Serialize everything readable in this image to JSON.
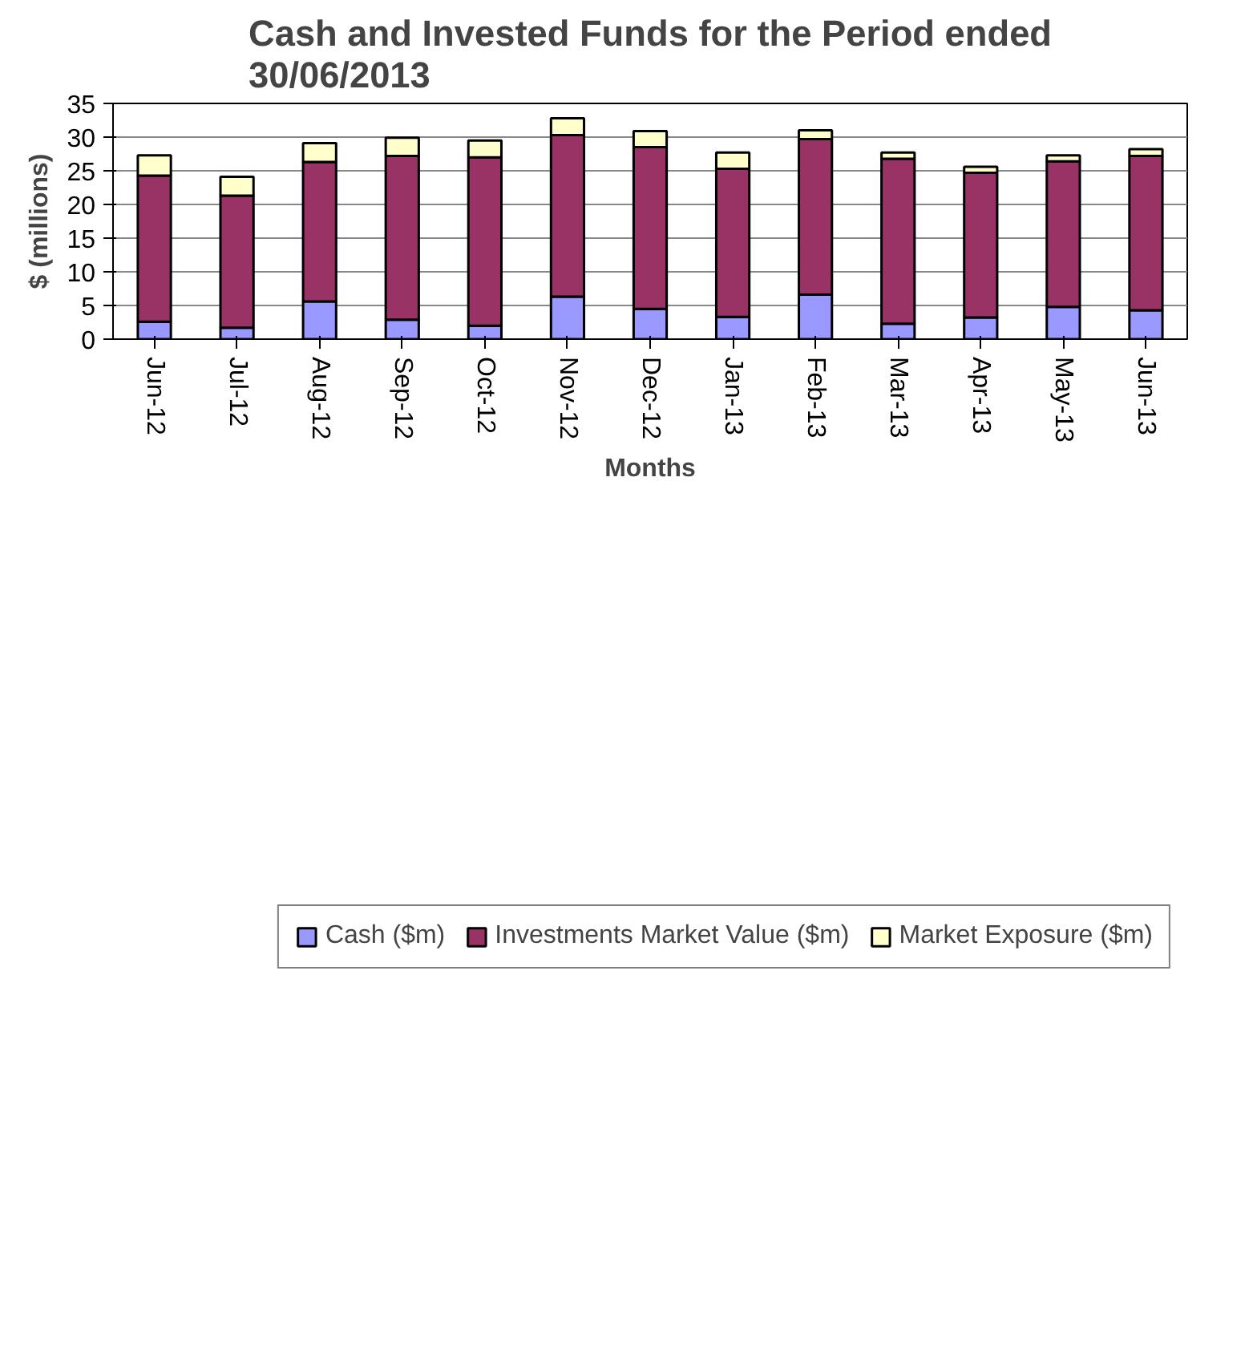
{
  "chart_data": {
    "type": "bar",
    "stacked": true,
    "title": "Cash and Invested Funds for the Period ended 30/06/2013",
    "xlabel": "Months",
    "ylabel": "$ (millions)",
    "categories": [
      "Jun-12",
      "Jul-12",
      "Aug-12",
      "Sep-12",
      "Oct-12",
      "Nov-12",
      "Dec-12",
      "Jan-13",
      "Feb-13",
      "Mar-13",
      "Apr-13",
      "May-13",
      "Jun-13"
    ],
    "series": [
      {
        "name": "Cash ($m)",
        "color": "#9999ff",
        "values": [
          2.6,
          1.7,
          5.6,
          2.9,
          2.0,
          6.3,
          4.5,
          3.3,
          6.6,
          2.3,
          3.2,
          4.8,
          4.3
        ]
      },
      {
        "name": "Investments Market Value ($m)",
        "color": "#993366",
        "values": [
          21.7,
          19.6,
          20.7,
          24.3,
          25.0,
          24.0,
          24.0,
          22.0,
          23.1,
          24.5,
          21.5,
          21.6,
          22.9
        ]
      },
      {
        "name": "Market Exposure ($m)",
        "color": "#ffffcc",
        "values": [
          3.0,
          2.8,
          2.8,
          2.7,
          2.5,
          2.5,
          2.4,
          2.4,
          1.3,
          0.9,
          0.9,
          0.9,
          1.0
        ]
      }
    ],
    "ylim": [
      0,
      35
    ],
    "yticks": [
      0,
      5,
      10,
      15,
      20,
      25,
      30,
      35
    ],
    "grid": "y",
    "legend": "bottom"
  }
}
